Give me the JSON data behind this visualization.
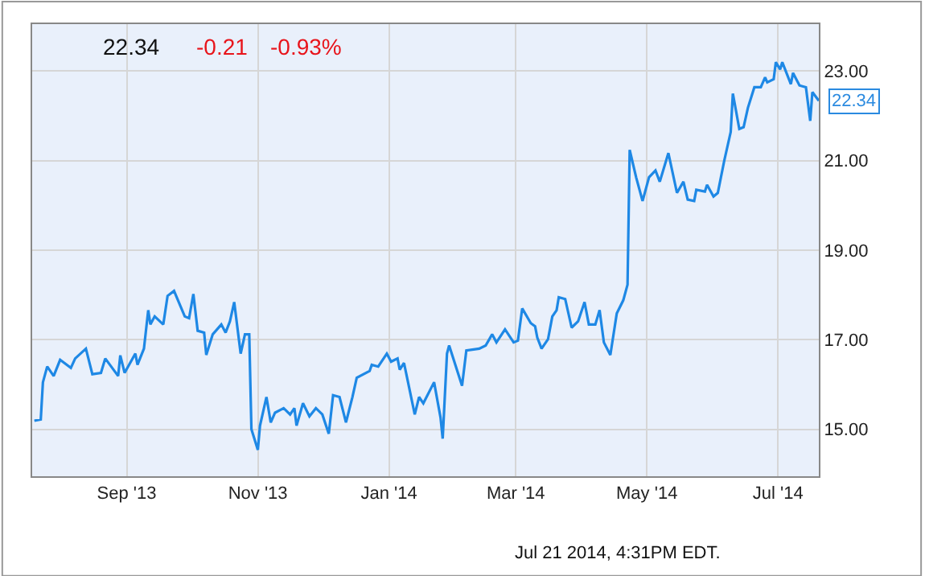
{
  "chart_data": {
    "type": "line",
    "x": [
      "2013-07-20",
      "2013-07-23",
      "2013-07-24",
      "2013-07-26",
      "2013-07-29",
      "2013-08-01",
      "2013-08-06",
      "2013-08-08",
      "2013-08-13",
      "2013-08-16",
      "2013-08-20",
      "2013-08-22",
      "2013-08-28",
      "2013-08-29",
      "2013-08-31",
      "2013-09-05",
      "2013-09-06",
      "2013-09-09",
      "2013-09-11",
      "2013-09-12",
      "2013-09-14",
      "2013-09-18",
      "2013-09-20",
      "2013-09-23",
      "2013-09-28",
      "2013-09-30",
      "2013-10-02",
      "2013-10-04",
      "2013-10-07",
      "2013-10-08",
      "2013-10-11",
      "2013-10-15",
      "2013-10-17",
      "2013-10-19",
      "2013-10-21",
      "2013-10-24",
      "2013-10-26",
      "2013-10-28",
      "2013-10-29",
      "2013-11-01",
      "2013-11-02",
      "2013-11-05",
      "2013-11-07",
      "2013-11-09",
      "2013-11-13",
      "2013-11-16",
      "2013-11-18",
      "2013-11-19",
      "2013-11-22",
      "2013-11-25",
      "2013-11-28",
      "2013-12-01",
      "2013-12-04",
      "2013-12-06",
      "2013-12-09",
      "2013-12-12",
      "2013-12-15",
      "2013-12-17",
      "2013-12-23",
      "2013-12-24",
      "2013-12-27",
      "2013-12-31",
      "2014-01-02",
      "2014-01-05",
      "2014-01-06",
      "2014-01-08",
      "2014-01-13",
      "2014-01-15",
      "2014-01-17",
      "2014-01-22",
      "2014-01-25",
      "2014-01-26",
      "2014-01-28",
      "2014-01-29",
      "2014-02-04",
      "2014-02-06",
      "2014-02-12",
      "2014-02-15",
      "2014-02-18",
      "2014-02-20",
      "2014-02-24",
      "2014-02-28",
      "2014-03-02",
      "2014-03-04",
      "2014-03-08",
      "2014-03-10",
      "2014-03-11",
      "2014-03-13",
      "2014-03-16",
      "2014-03-18",
      "2014-03-20",
      "2014-03-21",
      "2014-03-24",
      "2014-03-27",
      "2014-03-30",
      "2014-04-02",
      "2014-04-04",
      "2014-04-07",
      "2014-04-09",
      "2014-04-11",
      "2014-04-14",
      "2014-04-17",
      "2014-04-20",
      "2014-04-22",
      "2014-04-23",
      "2014-04-26",
      "2014-04-29",
      "2014-05-02",
      "2014-05-05",
      "2014-05-07",
      "2014-05-11",
      "2014-05-15",
      "2014-05-18",
      "2014-05-20",
      "2014-05-23",
      "2014-05-24",
      "2014-05-28",
      "2014-05-29",
      "2014-06-01",
      "2014-06-03",
      "2014-06-06",
      "2014-06-09",
      "2014-06-10",
      "2014-06-13",
      "2014-06-15",
      "2014-06-17",
      "2014-06-20",
      "2014-06-23",
      "2014-06-25",
      "2014-06-26",
      "2014-06-29",
      "2014-06-30",
      "2014-07-02",
      "2014-07-03",
      "2014-07-07",
      "2014-07-08",
      "2014-07-11",
      "2014-07-14",
      "2014-07-16",
      "2014-07-17",
      "2014-07-20"
    ],
    "series": [
      {
        "color": "#1e88e5",
        "values": [
          15.19,
          15.22,
          16.05,
          16.4,
          16.19,
          16.55,
          16.37,
          16.58,
          16.8,
          16.23,
          16.26,
          16.58,
          16.19,
          16.65,
          16.26,
          16.69,
          16.44,
          16.8,
          17.66,
          17.34,
          17.52,
          17.34,
          17.98,
          18.09,
          17.52,
          17.48,
          18.02,
          17.2,
          17.16,
          16.66,
          17.12,
          17.34,
          17.16,
          17.41,
          17.84,
          16.69,
          17.12,
          17.12,
          15.0,
          14.54,
          15.08,
          15.72,
          15.15,
          15.37,
          15.47,
          15.33,
          15.47,
          15.08,
          15.58,
          15.29,
          15.47,
          15.33,
          14.9,
          15.76,
          15.72,
          15.15,
          15.72,
          16.15,
          16.3,
          16.44,
          16.4,
          16.69,
          16.51,
          16.58,
          16.33,
          16.48,
          15.33,
          15.72,
          15.58,
          16.05,
          15.26,
          14.79,
          16.69,
          16.87,
          15.97,
          16.76,
          16.8,
          16.87,
          17.12,
          16.94,
          17.23,
          16.94,
          16.98,
          17.7,
          17.37,
          17.3,
          17.05,
          16.8,
          17.01,
          17.52,
          17.66,
          17.95,
          17.91,
          17.27,
          17.41,
          17.84,
          17.34,
          17.34,
          17.66,
          16.94,
          16.66,
          17.59,
          17.88,
          18.23,
          21.24,
          20.63,
          20.1,
          20.63,
          20.78,
          20.53,
          21.17,
          20.28,
          20.53,
          20.13,
          20.1,
          20.35,
          20.31,
          20.46,
          20.2,
          20.28,
          21.0,
          21.64,
          22.5,
          21.71,
          21.75,
          22.18,
          22.64,
          22.64,
          22.86,
          22.75,
          22.82,
          23.2,
          23.04,
          23.2,
          22.71,
          22.96,
          22.68,
          22.64,
          21.89,
          22.53,
          22.34
        ]
      }
    ],
    "xlim": [
      "2013-07-19",
      "2014-07-20"
    ],
    "xticks": [
      {
        "value": "2013-09-01",
        "label": "Sep '13"
      },
      {
        "value": "2013-11-01",
        "label": "Nov '13"
      },
      {
        "value": "2014-01-01",
        "label": "Jan '14"
      },
      {
        "value": "2014-03-01",
        "label": "Mar '14"
      },
      {
        "value": "2014-05-01",
        "label": "May '14"
      },
      {
        "value": "2014-07-01",
        "label": "Jul '14"
      }
    ],
    "ylim": [
      13.95,
      24.05
    ],
    "yticks": [
      {
        "value": 15,
        "label": "15.00"
      },
      {
        "value": 17,
        "label": "17.00"
      },
      {
        "value": 19,
        "label": "19.00"
      },
      {
        "value": 21,
        "label": "21.00"
      },
      {
        "value": 23,
        "label": "23.00"
      }
    ],
    "grid": true,
    "annotations": [
      "22.34",
      "-0.21",
      "-0.93%",
      {
        "text": "22.34",
        "x": "2014-07-20",
        "y": 22.34
      },
      "Jul 21 2014, 4:31PM EDT."
    ]
  }
}
